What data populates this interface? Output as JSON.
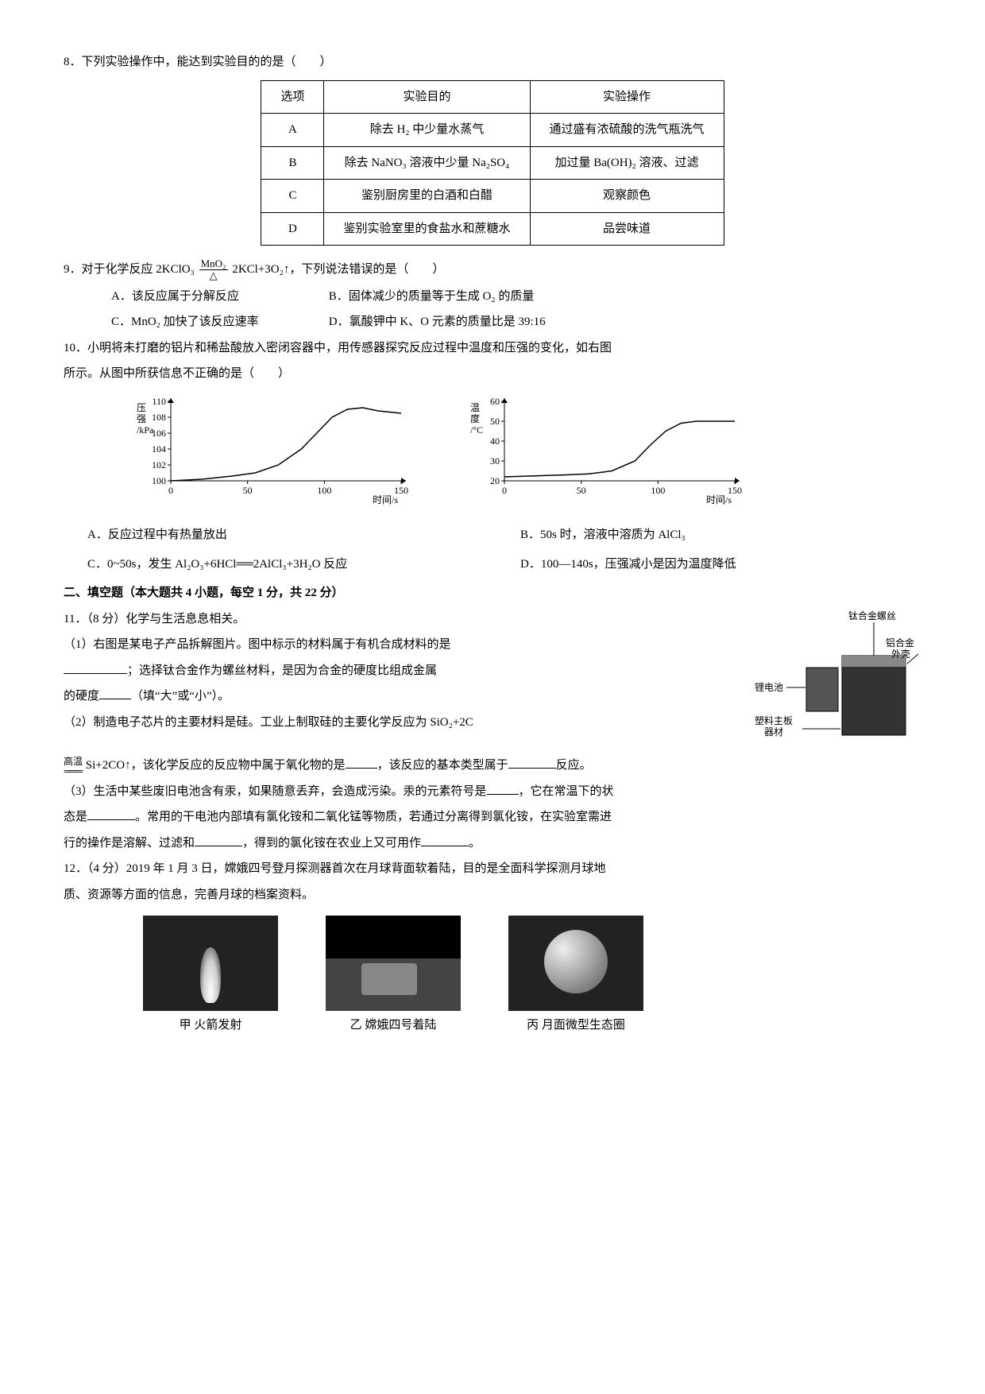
{
  "q8": {
    "stem": "8．下列实验操作中，能达到实验目的的是（　　）",
    "header": [
      "选项",
      "实验目的",
      "实验操作"
    ],
    "rows": [
      [
        "A",
        "除去 H₂ 中少量水蒸气",
        "通过盛有浓硫酸的洗气瓶洗气"
      ],
      [
        "B",
        "除去 NaNO₃ 溶液中少量 Na₂SO₄",
        "加过量 Ba(OH)₂ 溶液、过滤"
      ],
      [
        "C",
        "鉴别厨房里的白酒和白醋",
        "观察颜色"
      ],
      [
        "D",
        "鉴别实验室里的食盐水和蔗糖水",
        "品尝味道"
      ]
    ]
  },
  "q9": {
    "stem_a": "9．对于化学反应 2KClO₃",
    "frac_num": "MnO₂",
    "frac_den": "△",
    "stem_b": " 2KCl+3O₂↑，下列说法错误的是（　　）",
    "A": "A．该反应属于分解反应",
    "B": "B．固体减少的质量等于生成 O₂ 的质量",
    "C": "C．MnO₂ 加快了该反应速率",
    "D": "D．氯酸钾中 K、O 元素的质量比是 39:16"
  },
  "q10": {
    "stem1": "10．小明将未打磨的铝片和稀盐酸放入密闭容器中，用传感器探究反应过程中温度和压强的变化，如右图",
    "stem2": "所示。从图中所获信息不正确的是（　　）",
    "chart1": {
      "ylabel": "压\n强\n/kPa",
      "xlabel": "时间/s",
      "yticks": [
        100,
        102,
        104,
        106,
        108,
        110
      ],
      "xticks": [
        0,
        50,
        100,
        150
      ],
      "ylim": [
        100,
        110
      ],
      "xlim": [
        0,
        150
      ],
      "points": [
        [
          0,
          100
        ],
        [
          20,
          100.2
        ],
        [
          40,
          100.6
        ],
        [
          55,
          101
        ],
        [
          70,
          102
        ],
        [
          85,
          104
        ],
        [
          95,
          106
        ],
        [
          105,
          108
        ],
        [
          115,
          109
        ],
        [
          125,
          109.2
        ],
        [
          135,
          108.8
        ],
        [
          150,
          108.5
        ]
      ],
      "line_color": "#000000",
      "bg": "#ffffff"
    },
    "chart2": {
      "ylabel": "温\n度\n/°C",
      "xlabel": "时间/s",
      "yticks": [
        20,
        30,
        40,
        50,
        60
      ],
      "xticks": [
        0,
        50,
        100,
        150
      ],
      "ylim": [
        20,
        60
      ],
      "xlim": [
        0,
        150
      ],
      "points": [
        [
          0,
          22
        ],
        [
          20,
          22.5
        ],
        [
          40,
          23
        ],
        [
          55,
          23.5
        ],
        [
          70,
          25
        ],
        [
          85,
          30
        ],
        [
          95,
          38
        ],
        [
          105,
          45
        ],
        [
          115,
          49
        ],
        [
          125,
          50
        ],
        [
          135,
          50
        ],
        [
          150,
          50
        ]
      ],
      "line_color": "#000000",
      "bg": "#ffffff"
    },
    "A": "A．反应过程中有热量放出",
    "B": "B．50s 时，溶液中溶质为 AlCl₃",
    "C": "C．0~50s，发生 Al₂O₃+6HCl══2AlCl₃+3H₂O 反应",
    "D": "D．100—140s，压强减小是因为温度降低"
  },
  "sec2": "二、填空题（本大题共 4 小题，每空 1 分，共 22 分）",
  "q11": {
    "head": "11．（8 分）化学与生活息息相关。",
    "p1a": "（1）右图是某电子产品拆解图片。图中标示的材料属于有机合成材料的是",
    "p1b": "；选择钛合金作为螺丝材料，是因为合金的硬度比组成金属",
    "p1c": "的硬度",
    "p1d": "（填“大”或“小”）。",
    "p2a": "（2）制造电子芯片的主要材料是硅。工业上制取硅的主要化学反应为 SiO₂+2C",
    "p2cond": "高温",
    "p2b": "Si+2CO↑，该化学反应的反应物中属于氧化物的是",
    "p2c": "，该反应的基本类型属于",
    "p2d": "反应。",
    "p3a": "（3）生活中某些废旧电池含有汞，如果随意丢弃，会造成污染。汞的元素符号是",
    "p3b": "，它在常温下的状",
    "p3c": "态是",
    "p3d": "。常用的干电池内部填有氯化铵和二氧化锰等物质，若通过分离得到氯化铵，在实验室需进",
    "p3e": "行的操作是溶解、过滤和",
    "p3f": "，得到的氯化铵在农业上又可用作",
    "p3g": "。",
    "labels": {
      "screw": "钛合金螺丝",
      "shell": "铝合金\n外壳",
      "battery": "锂电池",
      "board": "塑料主板\n器材"
    }
  },
  "q12": {
    "line1": "12．（4 分）2019 年 1 月 3 日，嫦娥四号登月探测器首次在月球背面软着陆，目的是全面科学探测月球地",
    "line2": "质、资源等方面的信息，完善月球的档案资料。",
    "cap1": "甲  火箭发射",
    "cap2": "乙  嫦娥四号着陆",
    "cap3": "丙  月面微型生态圈"
  }
}
